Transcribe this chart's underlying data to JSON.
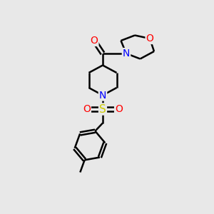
{
  "bg_color": "#e8e8e8",
  "atom_colors": {
    "C": "#000000",
    "N": "#0000ff",
    "O": "#ff0000",
    "S": "#cccc00"
  },
  "bond_color": "#000000",
  "bond_width": 1.8,
  "font_size_atoms": 9,
  "fig_bg": "#e8e8e8"
}
